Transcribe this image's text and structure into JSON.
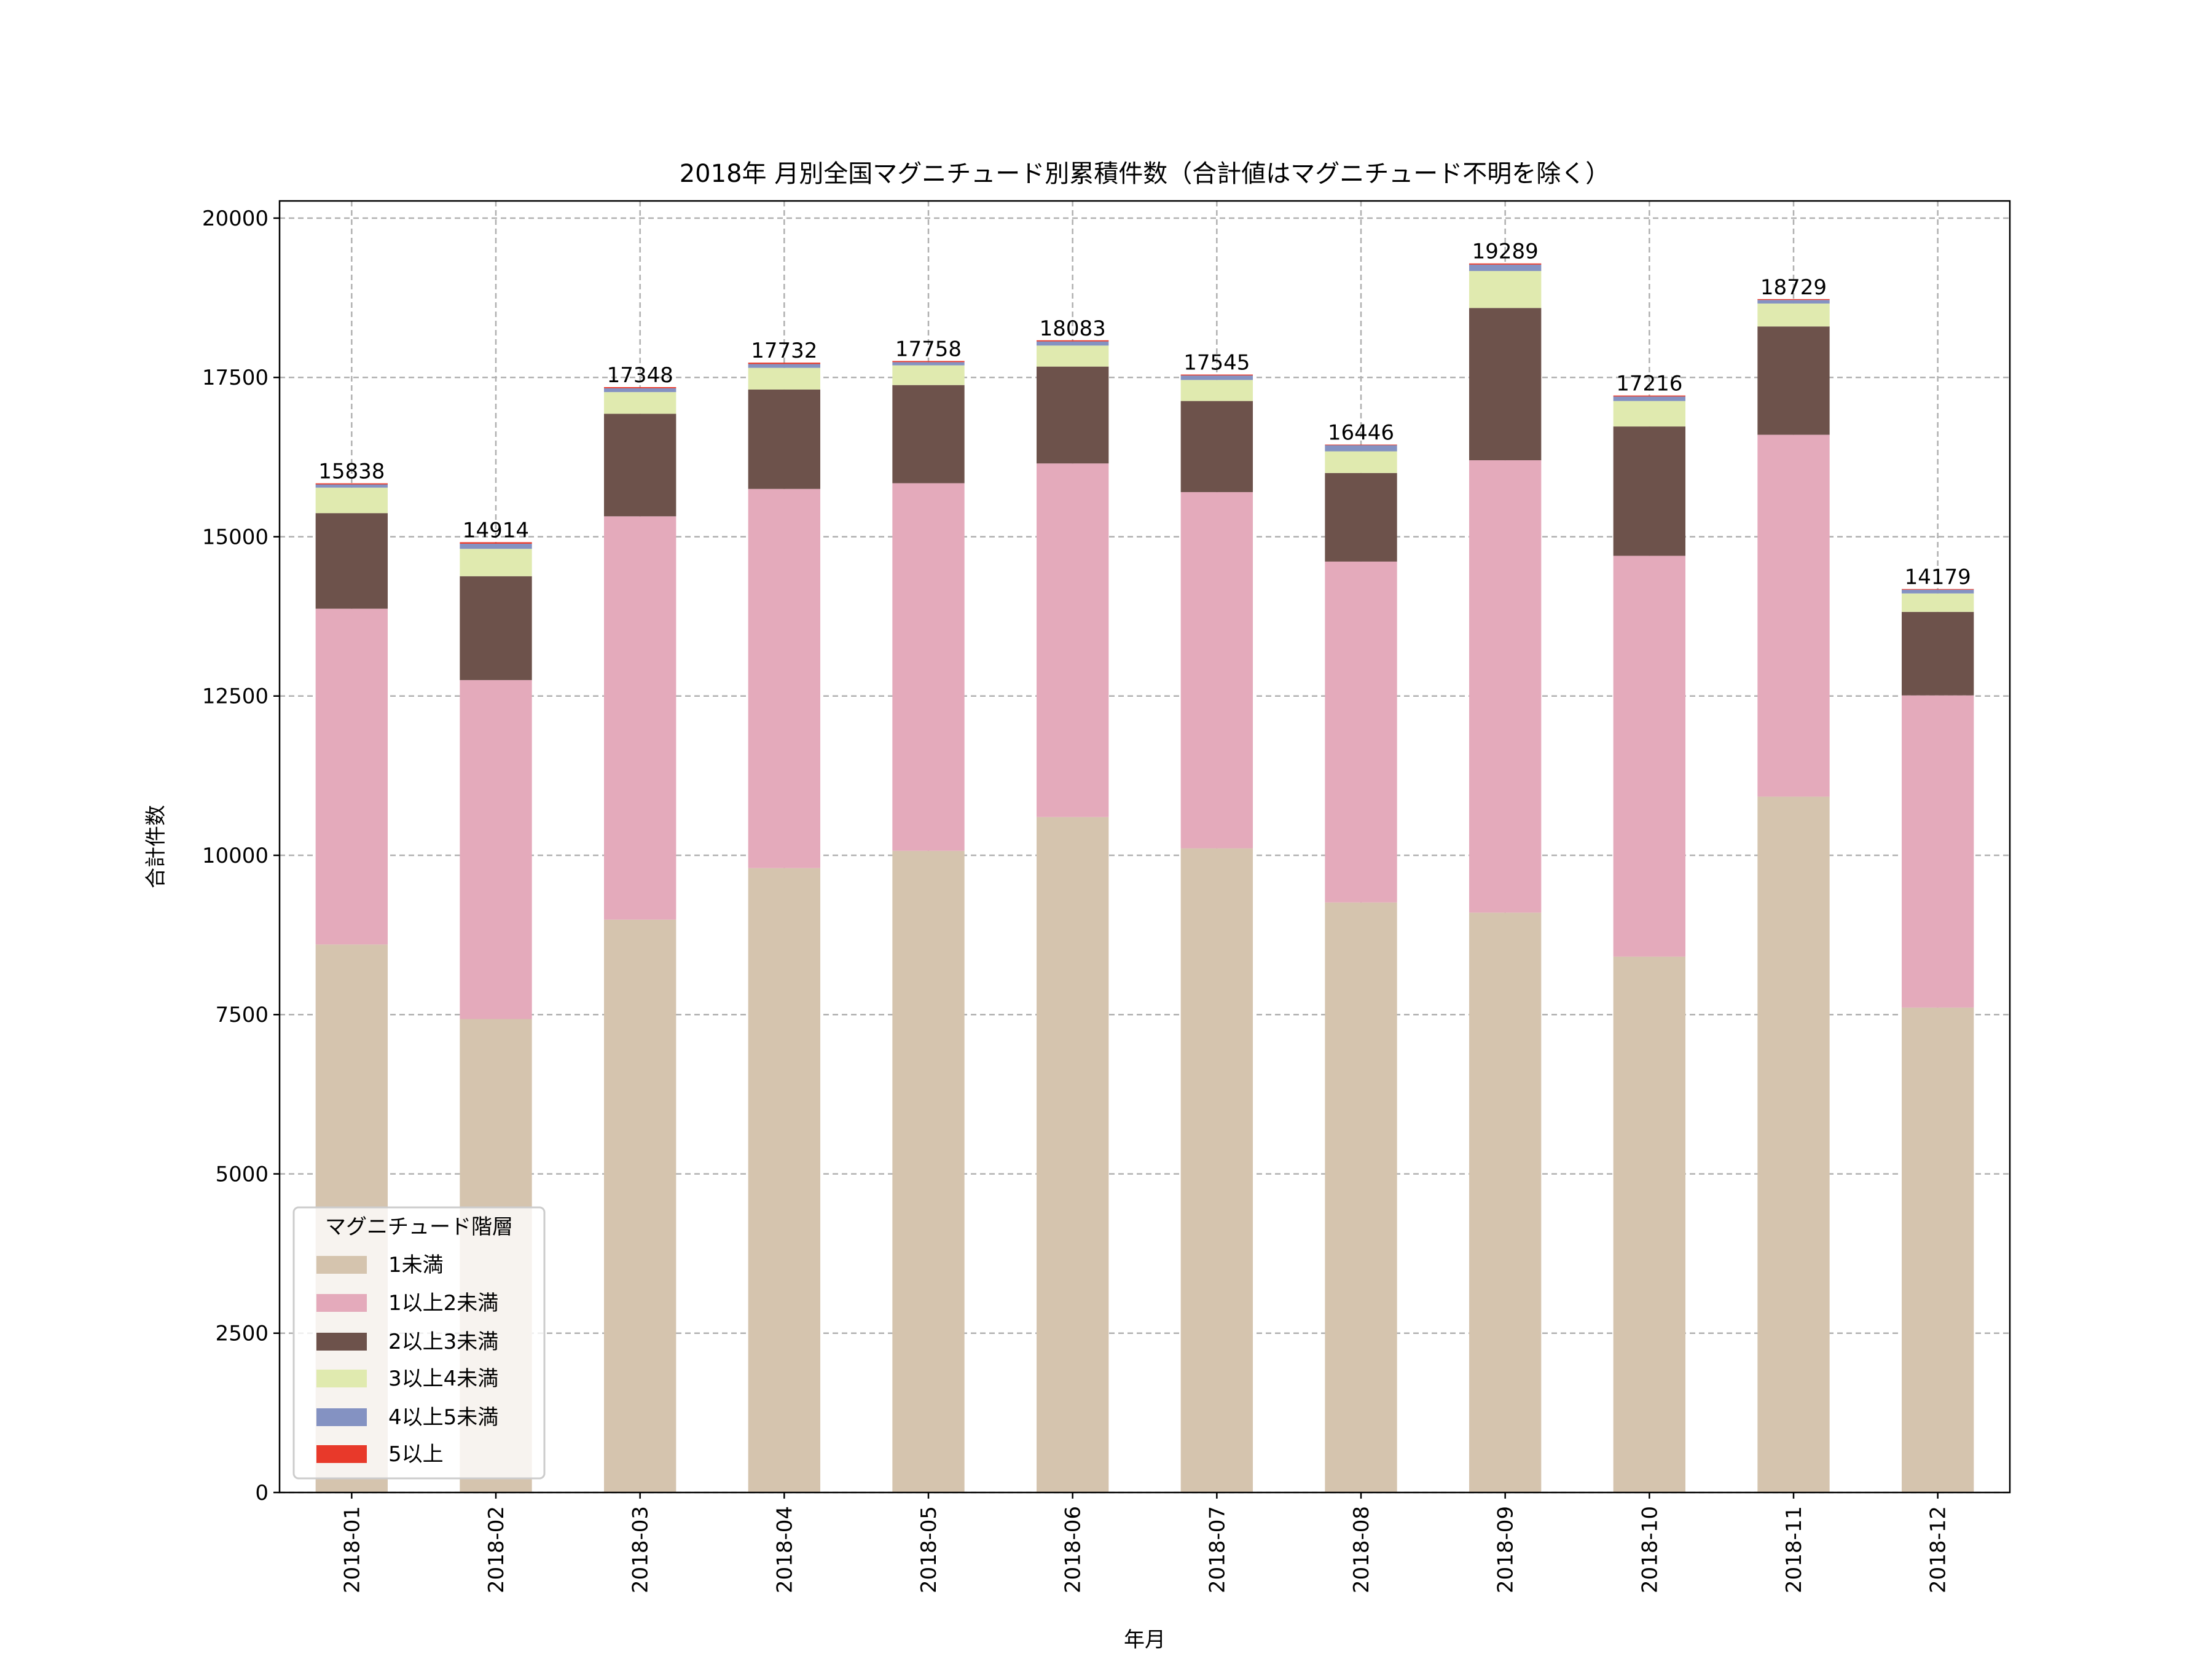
{
  "chart_data": {
    "type": "bar",
    "stacked": true,
    "title": "2018年 月別全国マグニチュード別累積件数（合計値はマグニチュード不明を除く）",
    "xlabel": "年月",
    "ylabel": "合計件数",
    "ylim": [
      0,
      20270
    ],
    "yticks": [
      0,
      2500,
      5000,
      7500,
      10000,
      12500,
      15000,
      17500,
      20000
    ],
    "grid": true,
    "legend": {
      "title": "マグニチュード階層",
      "placement": "lower-left"
    },
    "categories": [
      "2018-01",
      "2018-02",
      "2018-03",
      "2018-04",
      "2018-05",
      "2018-06",
      "2018-07",
      "2018-08",
      "2018-09",
      "2018-10",
      "2018-11",
      "2018-12"
    ],
    "series": [
      {
        "name": "1未満",
        "color": "#d5c4ae",
        "values": [
          8600,
          7430,
          8990,
          9800,
          10070,
          10600,
          10110,
          9260,
          9100,
          8410,
          10920,
          7610
        ]
      },
      {
        "name": "1以上2未満",
        "color": "#e4aabb",
        "values": [
          5270,
          5320,
          6330,
          5950,
          5770,
          5550,
          5590,
          5350,
          7100,
          6290,
          5680,
          4900
        ]
      },
      {
        "name": "2以上3未満",
        "color": "#6d524b",
        "values": [
          1500,
          1630,
          1610,
          1560,
          1540,
          1520,
          1430,
          1390,
          2390,
          2030,
          1700,
          1310
        ]
      },
      {
        "name": "3以上4未満",
        "color": "#e0eaaf",
        "values": [
          400,
          430,
          340,
          340,
          310,
          330,
          330,
          340,
          580,
          400,
          360,
          290
        ]
      },
      {
        "name": "4以上5未満",
        "color": "#8492c2",
        "values": [
          50,
          80,
          60,
          60,
          50,
          65,
          70,
          96,
          100,
          70,
          55,
          58
        ]
      },
      {
        "name": "5以上",
        "color": "#e8392a",
        "values": [
          18,
          24,
          18,
          22,
          18,
          18,
          15,
          10,
          19,
          16,
          14,
          11
        ]
      }
    ],
    "totals": [
      "15838",
      "14914",
      "17348",
      "17732",
      "17758",
      "18083",
      "17545",
      "16446",
      "19289",
      "17216",
      "18729",
      "14179"
    ]
  }
}
